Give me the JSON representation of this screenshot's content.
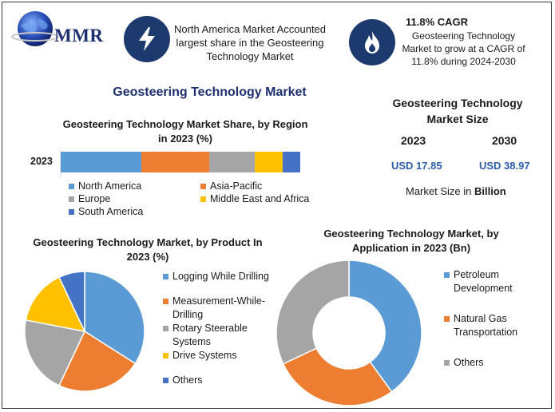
{
  "logo": {
    "text": "MMR"
  },
  "header": {
    "left_text": "North America Market Accounted largest share in the Geosteering Technology Market",
    "right_title": "11.8% CAGR",
    "right_text": "Geosteering Technology Market to grow at a CAGR of 11.8% during 2024-2030",
    "left_icon": "lightning-icon",
    "right_icon": "flame-icon"
  },
  "main_title": "Geosteering Technology Market",
  "market_size": {
    "title": "Geosteering Technology Market Size",
    "year_a": "2023",
    "year_b": "2030",
    "value_a": "USD 17.85",
    "value_b": "USD 38.97",
    "note_prefix": "Market Size in ",
    "note_unit": "Billion"
  },
  "colors": {
    "blue": "#5b9bd5",
    "orange": "#ed7d31",
    "gray": "#a5a5a5",
    "yellow": "#ffc000",
    "darkblue": "#4472c4",
    "navy": "#1d3a6e",
    "title_blue": "#1d2f6f"
  },
  "chart_data": [
    {
      "type": "bar",
      "orientation": "horizontal-stacked",
      "title": "Geosteering Technology Market Share, by Region in 2023 (%)",
      "categories": [
        "2023"
      ],
      "series": [
        {
          "name": "North America",
          "values": [
            32
          ],
          "color": "#5b9bd5"
        },
        {
          "name": "Asia-Pacific",
          "values": [
            27
          ],
          "color": "#ed7d31"
        },
        {
          "name": "Europe",
          "values": [
            18
          ],
          "color": "#a5a5a5"
        },
        {
          "name": "Middle East and Africa",
          "values": [
            11
          ],
          "color": "#ffc000"
        },
        {
          "name": "South America",
          "values": [
            7
          ],
          "color": "#4472c4"
        }
      ],
      "xlim": [
        0,
        95
      ],
      "legend": "bottom"
    },
    {
      "type": "pie",
      "title": "Geosteering Technology Market, by Product In 2023 (%)",
      "slices": [
        {
          "name": "Logging While Drilling",
          "value": 34,
          "color": "#5b9bd5"
        },
        {
          "name": "Measurement-While-Drilling",
          "value": 23,
          "color": "#ed7d31"
        },
        {
          "name": "Rotary Steerable Systems",
          "value": 21,
          "color": "#a5a5a5"
        },
        {
          "name": "Drive Systems",
          "value": 15,
          "color": "#ffc000"
        },
        {
          "name": "Others",
          "value": 7,
          "color": "#4472c4"
        }
      ],
      "legend": "right"
    },
    {
      "type": "pie",
      "subtype": "donut",
      "title": "Geosteering Technology Market, by Application in 2023 (Bn)",
      "slices": [
        {
          "name": "Petroleum Development",
          "value": 40,
          "color": "#5b9bd5"
        },
        {
          "name": "Natural Gas Transportation",
          "value": 28,
          "color": "#ed7d31"
        },
        {
          "name": "Others",
          "value": 32,
          "color": "#a5a5a5"
        }
      ],
      "legend": "right"
    }
  ]
}
